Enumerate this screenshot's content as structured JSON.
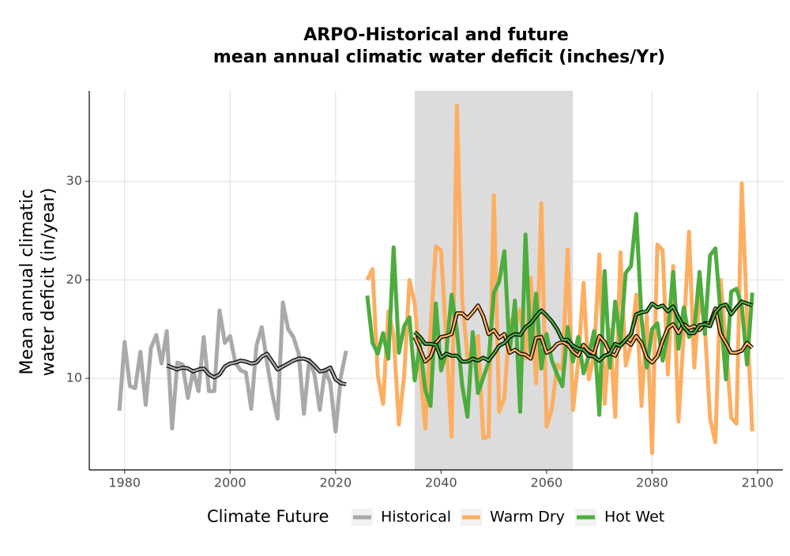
{
  "chart_data": {
    "type": "line",
    "title": [
      "ARPO-Historical and future",
      "mean annual climatic water deficit (inches/Yr)"
    ],
    "y_label": [
      "Mean annual climatic",
      "water deficit (in/year)"
    ],
    "legend_title": "Climate Future",
    "legend": "bottom",
    "grid": true,
    "shade": [
      2035,
      2065
    ],
    "shade_color": "#dcdcdc",
    "xlim": [
      1973.3,
      2104.8
    ],
    "ylim": [
      0.7,
      39.2
    ],
    "xticks": [
      1980,
      2000,
      2020,
      2040,
      2060,
      2080,
      2100
    ],
    "yticks": [
      10,
      20,
      30
    ],
    "series": [
      {
        "name": "Historical",
        "color": "#a9a9a9",
        "x": [
          1979,
          1980,
          1981,
          1982,
          1983,
          1984,
          1985,
          1986,
          1987,
          1988,
          1989,
          1990,
          1991,
          1992,
          1993,
          1994,
          1995,
          1996,
          1997,
          1998,
          1999,
          2000,
          2001,
          2002,
          2003,
          2004,
          2005,
          2006,
          2007,
          2008,
          2009,
          2010,
          2011,
          2012,
          2013,
          2014,
          2015,
          2016,
          2017,
          2018,
          2019,
          2020,
          2021,
          2022
        ],
        "values": [
          6.7,
          13.7,
          9.2,
          9.0,
          12.7,
          7.3,
          13.1,
          14.4,
          11.5,
          14.8,
          4.9,
          11.6,
          11.4,
          8.0,
          10.8,
          8.7,
          14.2,
          8.7,
          8.7,
          16.9,
          13.6,
          14.3,
          11.6,
          10.8,
          10.6,
          6.9,
          13.3,
          15.2,
          11.6,
          8.4,
          5.9,
          17.7,
          15.0,
          14.2,
          12.5,
          6.4,
          11.9,
          10.4,
          6.8,
          10.9,
          9.5,
          4.6,
          10.2,
          12.8
        ],
        "rolling_x": [
          1988,
          1989,
          1990,
          1991,
          1992,
          1993,
          1994,
          1995,
          1996,
          1997,
          1998,
          1999,
          2000,
          2001,
          2002,
          2003,
          2004,
          2005,
          2006,
          2007,
          2008,
          2009,
          2010,
          2011,
          2012,
          2013,
          2014,
          2015,
          2016,
          2017,
          2018,
          2019,
          2020,
          2021,
          2022
        ],
        "rolling_values": [
          11.3,
          11.1,
          10.9,
          11.1,
          11.0,
          10.7,
          10.9,
          11.0,
          10.4,
          10.1,
          10.4,
          11.2,
          11.5,
          11.6,
          11.8,
          11.7,
          11.5,
          11.6,
          12.2,
          12.5,
          11.7,
          10.9,
          11.2,
          11.5,
          11.8,
          12.0,
          12.0,
          11.8,
          11.3,
          10.7,
          10.8,
          11.1,
          9.9,
          9.5,
          9.4
        ]
      },
      {
        "name": "Warm Dry",
        "color": "#fdae61",
        "x": [
          2026,
          2027,
          2028,
          2029,
          2030,
          2031,
          2032,
          2033,
          2034,
          2035,
          2036,
          2037,
          2038,
          2039,
          2040,
          2041,
          2042,
          2043,
          2044,
          2045,
          2046,
          2047,
          2048,
          2049,
          2050,
          2051,
          2052,
          2053,
          2054,
          2055,
          2056,
          2057,
          2058,
          2059,
          2060,
          2061,
          2062,
          2063,
          2064,
          2065,
          2066,
          2067,
          2068,
          2069,
          2070,
          2071,
          2072,
          2073,
          2074,
          2075,
          2076,
          2077,
          2078,
          2079,
          2080,
          2081,
          2082,
          2083,
          2084,
          2085,
          2086,
          2087,
          2088,
          2089,
          2090,
          2091,
          2092,
          2093,
          2094,
          2095,
          2096,
          2097,
          2098,
          2099
        ],
        "values": [
          20.0,
          21.1,
          10.3,
          7.4,
          16.8,
          14.4,
          5.3,
          10.3,
          20.0,
          17.6,
          11.2,
          4.9,
          14.9,
          23.4,
          23.0,
          13.6,
          4.1,
          37.7,
          18.0,
          12.1,
          12.8,
          14.3,
          3.9,
          4.1,
          28.6,
          6.6,
          8.0,
          15.9,
          15.0,
          17.0,
          12.0,
          20.2,
          9.5,
          27.8,
          5.1,
          6.9,
          11.4,
          10.9,
          23.1,
          6.8,
          11.7,
          19.7,
          9.9,
          12.4,
          22.6,
          7.4,
          14.9,
          6.1,
          22.8,
          11.3,
          13.4,
          18.5,
          7.2,
          16.4,
          2.4,
          23.6,
          23.0,
          10.4,
          21.4,
          5.6,
          14.5,
          24.9,
          11.1,
          18.5,
          15.3,
          5.9,
          3.5,
          20.0,
          13.4,
          6.0,
          5.4,
          29.8,
          16.0,
          4.6
        ],
        "rolling_x": [
          2035,
          2036,
          2037,
          2038,
          2039,
          2040,
          2041,
          2042,
          2043,
          2044,
          2045,
          2046,
          2047,
          2048,
          2049,
          2050,
          2051,
          2052,
          2053,
          2054,
          2055,
          2056,
          2057,
          2058,
          2059,
          2060,
          2061,
          2062,
          2063,
          2064,
          2065,
          2066,
          2067,
          2068,
          2069,
          2070,
          2071,
          2072,
          2073,
          2074,
          2075,
          2076,
          2077,
          2078,
          2079,
          2080,
          2081,
          2082,
          2083,
          2084,
          2085,
          2086,
          2087,
          2088,
          2089,
          2090,
          2091,
          2092,
          2093,
          2094,
          2095,
          2096,
          2097,
          2098,
          2099
        ],
        "rolling_values": [
          14.2,
          13.0,
          11.7,
          12.2,
          13.6,
          14.2,
          14.3,
          14.5,
          16.6,
          16.6,
          16.1,
          16.7,
          17.4,
          16.3,
          14.5,
          14.9,
          14.1,
          14.5,
          12.6,
          12.9,
          12.5,
          12.4,
          12.0,
          14.1,
          14.2,
          12.6,
          12.9,
          13.5,
          13.7,
          13.4,
          12.7,
          12.3,
          13.4,
          12.8,
          12.5,
          14.3,
          13.7,
          12.6,
          12.3,
          13.4,
          13.8,
          13.4,
          14.3,
          13.6,
          12.1,
          11.6,
          12.2,
          13.8,
          15.1,
          15.5,
          14.6,
          15.5,
          15.1,
          15.3,
          14.9,
          15.6,
          15.6,
          17.1,
          14.5,
          13.6,
          12.6,
          12.6,
          12.8,
          13.6,
          13.1
        ]
      },
      {
        "name": "Hot Wet",
        "color": "#4dac3e",
        "x": [
          2026,
          2027,
          2028,
          2029,
          2030,
          2031,
          2032,
          2033,
          2034,
          2035,
          2036,
          2037,
          2038,
          2039,
          2040,
          2041,
          2042,
          2043,
          2044,
          2045,
          2046,
          2047,
          2048,
          2049,
          2050,
          2051,
          2052,
          2053,
          2054,
          2055,
          2056,
          2057,
          2058,
          2059,
          2060,
          2061,
          2062,
          2063,
          2064,
          2065,
          2066,
          2067,
          2068,
          2069,
          2070,
          2071,
          2072,
          2073,
          2074,
          2075,
          2076,
          2077,
          2078,
          2079,
          2080,
          2081,
          2082,
          2083,
          2084,
          2085,
          2086,
          2087,
          2088,
          2089,
          2090,
          2091,
          2092,
          2093,
          2094,
          2095,
          2096,
          2097,
          2098,
          2099
        ],
        "values": [
          18.4,
          13.6,
          12.5,
          14.6,
          12.0,
          23.3,
          12.6,
          15.3,
          16.2,
          9.8,
          13.5,
          8.8,
          7.2,
          17.6,
          10.8,
          12.7,
          18.5,
          14.8,
          9.3,
          6.1,
          14.7,
          8.5,
          10.1,
          11.6,
          18.7,
          19.8,
          22.9,
          12.6,
          17.9,
          6.6,
          24.6,
          12.6,
          18.6,
          11.0,
          14.5,
          11.8,
          10.4,
          9.2,
          15.2,
          11.7,
          14.2,
          10.5,
          12.3,
          14.8,
          6.3,
          20.9,
          11.1,
          17.8,
          13.7,
          20.7,
          21.4,
          26.7,
          16.0,
          11.1,
          15.0,
          15.6,
          11.8,
          14.6,
          20.8,
          13.0,
          17.2,
          14.2,
          14.9,
          20.8,
          14.5,
          22.5,
          23.2,
          16.5,
          9.9,
          18.8,
          19.1,
          17.4,
          11.4,
          18.7
        ],
        "rolling_x": [
          2035,
          2036,
          2037,
          2038,
          2039,
          2040,
          2041,
          2042,
          2043,
          2044,
          2045,
          2046,
          2047,
          2048,
          2049,
          2050,
          2051,
          2052,
          2053,
          2054,
          2055,
          2056,
          2057,
          2058,
          2059,
          2060,
          2061,
          2062,
          2063,
          2064,
          2065,
          2066,
          2067,
          2068,
          2069,
          2070,
          2071,
          2072,
          2073,
          2074,
          2075,
          2076,
          2077,
          2078,
          2079,
          2080,
          2081,
          2082,
          2083,
          2084,
          2085,
          2086,
          2087,
          2088,
          2089,
          2090,
          2091,
          2092,
          2093,
          2094,
          2095,
          2096,
          2097,
          2098,
          2099
        ],
        "rolling_values": [
          14.7,
          14.2,
          13.5,
          13.5,
          13.4,
          12.1,
          12.5,
          12.3,
          12.3,
          11.7,
          11.7,
          12.0,
          11.8,
          12.1,
          11.8,
          12.5,
          13.3,
          13.6,
          14.2,
          14.5,
          14.4,
          15.2,
          15.6,
          16.3,
          16.9,
          16.4,
          15.8,
          15.0,
          13.9,
          13.9,
          13.3,
          13.0,
          12.9,
          12.3,
          12.2,
          11.8,
          12.3,
          12.5,
          13.5,
          13.3,
          13.9,
          14.5,
          16.5,
          16.7,
          16.8,
          17.6,
          17.2,
          17.4,
          16.8,
          17.3,
          16.2,
          15.2,
          14.6,
          14.6,
          15.4,
          15.5,
          15.3,
          16.7,
          17.3,
          17.5,
          16.5,
          17.2,
          17.8,
          17.6,
          17.4
        ]
      }
    ]
  }
}
